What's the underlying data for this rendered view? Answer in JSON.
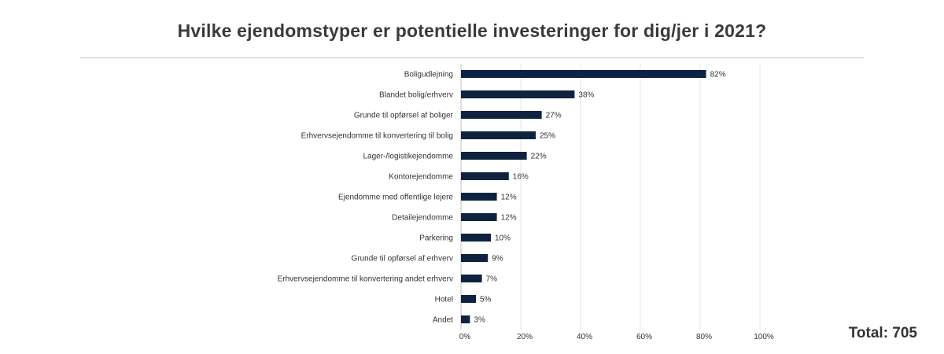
{
  "chart_data": {
    "type": "bar",
    "orientation": "horizontal",
    "title": "Hvilke ejendomstyper er potentielle investeringer for dig/jer i 2021?",
    "categories": [
      "Boligudlejning",
      "Blandet bolig/erhverv",
      "Grunde til opførsel af boliger",
      "Erhvervsejendomme til konvertering til bolig",
      "Lager-/logistikejendomme",
      "Kontorejendomme",
      "Ejendomme med offentlige lejere",
      "Detailejendomme",
      "Parkering",
      "Grunde til opførsel af erhverv",
      "Erhvervsejendomme til konvertering andet erhverv",
      "Hotel",
      "Andet"
    ],
    "values": [
      82,
      38,
      27,
      25,
      22,
      16,
      12,
      12,
      10,
      9,
      7,
      5,
      3
    ],
    "value_labels": [
      "82%",
      "38%",
      "27%",
      "25%",
      "22%",
      "16%",
      "12%",
      "12%",
      "10%",
      "9%",
      "7%",
      "5%",
      "3%"
    ],
    "xlim": [
      0,
      100
    ],
    "xticks": [
      0,
      20,
      40,
      60,
      80,
      100
    ],
    "xtick_labels": [
      "0%",
      "20%",
      "40%",
      "60%",
      "80%",
      "100%"
    ],
    "grid": true,
    "bar_color": "#0f2340",
    "grid_color": "#e6e6e6"
  },
  "total_label": "Total: 705"
}
